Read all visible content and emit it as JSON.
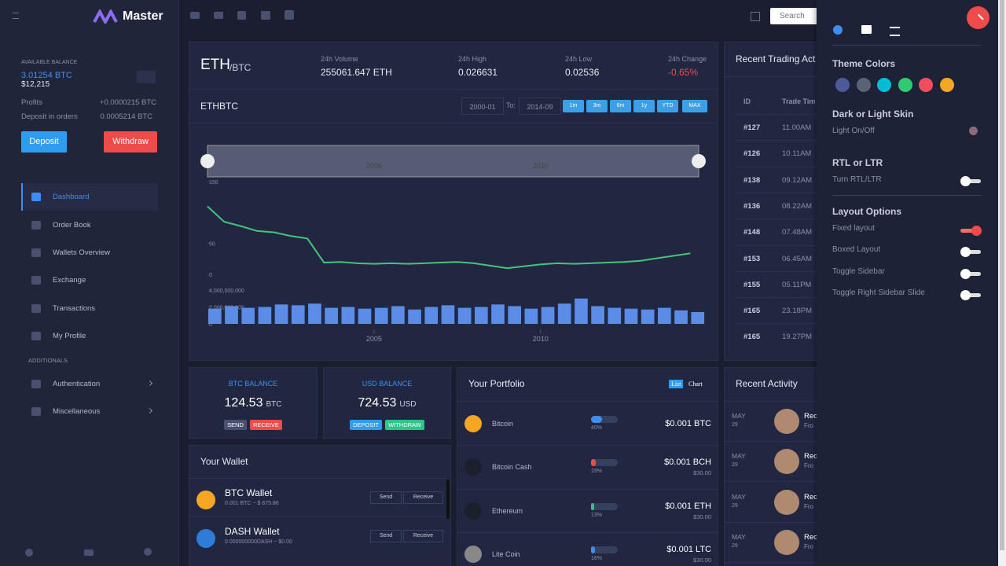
{
  "sidebar": {
    "brand": "Master",
    "balance_label": "AVAILABLE BALANCE",
    "balance_btc": "3.01254 BTC",
    "balance_usd": "$12,215",
    "profits_label": "Profits",
    "profits": "+0.0000215 BTC",
    "deposit_label": "Deposit in orders",
    "deposit": "0.0005214 BTC",
    "deposit_button": "Deposit",
    "withdraw_button": "Withdraw",
    "menu": [
      "Dashboard",
      "Order Book",
      "Wallets Overview",
      "Exchange",
      "Transactions",
      "My Profile"
    ],
    "additionals_label": "ADDITIONALS",
    "extra_menu": [
      "Authentication",
      "Miscellaneous"
    ]
  },
  "topbar": {
    "search": "Search"
  },
  "ticker": {
    "base": "ETH",
    "quote": "/BTC",
    "stats": [
      {
        "label": "24h Volume",
        "value": "255061.647 ETH"
      },
      {
        "label": "24h High",
        "value": "0.026631"
      },
      {
        "label": "24h Low",
        "value": "0.02536"
      },
      {
        "label": "24h Change",
        "value": "-0.65%"
      }
    ]
  },
  "chart_data": {
    "type": "line",
    "title": "ETHBTC",
    "from": "2000-01",
    "to_label": "To:",
    "to": "2014-09",
    "ranges": [
      "1m",
      "3m",
      "6m",
      "1y",
      "YTD",
      "MAX"
    ],
    "color": "#46c37b",
    "x": [
      2000,
      2000.5,
      2001,
      2001.5,
      2002,
      2002.5,
      2003,
      2003.5,
      2004,
      2004.5,
      2005,
      2005.5,
      2006,
      2006.5,
      2007,
      2007.5,
      2008,
      2008.5,
      2009,
      2009.5,
      2010,
      2010.5,
      2011,
      2011.5,
      2012,
      2012.5,
      2013,
      2013.5,
      2014,
      2014.5
    ],
    "xlim": [
      2000,
      2014.75
    ],
    "xticks": [
      2005,
      2010
    ],
    "series": [
      {
        "name": "ETHBTC",
        "values": [
          110,
          85,
          78,
          70,
          68,
          62,
          58,
          19,
          20,
          18,
          17,
          18,
          17,
          18,
          19,
          20,
          18,
          14,
          10,
          13,
          16,
          18,
          17,
          18,
          19,
          20,
          22,
          26,
          30,
          34
        ]
      },
      {
        "name": "Volume",
        "axis": "y2",
        "color": "#5b8de8",
        "values": [
          1800000000,
          2100000000,
          1900000000,
          2000000000,
          2300000000,
          2200000000,
          2400000000,
          1900000000,
          2000000000,
          1800000000,
          1900000000,
          2100000000,
          1700000000,
          2000000000,
          2200000000,
          1900000000,
          2000000000,
          2300000000,
          2100000000,
          1800000000,
          2000000000,
          2400000000,
          3000000000,
          2100000000,
          1900000000,
          1800000000,
          1700000000,
          1900000000,
          1600000000,
          1400000000
        ]
      }
    ],
    "ylim": [
      0,
      150
    ],
    "yticks": [
      0,
      50,
      150
    ],
    "y2lim": [
      0,
      4000000000
    ],
    "y2ticks": [
      0,
      {
        "value": 2000000000,
        "label": "2,000,000,000"
      },
      {
        "value": 4000000000,
        "label": "4,000,000,000"
      }
    ]
  },
  "trades": {
    "title": "Recent Trading Act",
    "columns": [
      "ID",
      "Trade Tim"
    ],
    "rows": [
      [
        "#127",
        "11.00AM"
      ],
      [
        "#126",
        "10.11AM"
      ],
      [
        "#138",
        "09.12AM"
      ],
      [
        "#136",
        "08.22AM"
      ],
      [
        "#148",
        "07.48AM"
      ],
      [
        "#153",
        "06.45AM"
      ],
      [
        "#155",
        "05.11PM"
      ],
      [
        "#165",
        "23.18PM"
      ],
      [
        "#165",
        "19.27PM"
      ]
    ]
  },
  "balances": [
    {
      "label": "BTC BALANCE",
      "amount": "124.53",
      "unit": "BTC",
      "buttons": [
        "SEND",
        "RECEIVE"
      ]
    },
    {
      "label": "USD BALANCE",
      "amount": "724.53",
      "unit": "USD",
      "buttons": [
        "DEPOSIT",
        "WITHDRAW"
      ]
    }
  ],
  "portfolio": {
    "title": "Your Portfolio",
    "tabs": [
      "List",
      "Chart"
    ],
    "rows": [
      {
        "name": "Bitcoin",
        "percent": 40,
        "percent_label": "40%",
        "amount": "$0.001 BTC",
        "color": "#3d8ef0"
      },
      {
        "name": "Bitcoin Cash",
        "percent": 19,
        "percent_label": "19%",
        "amount": "$0.001 BCH",
        "usd": "$30.00",
        "color": "#ef4b4b"
      },
      {
        "name": "Ethereum",
        "percent": 13,
        "percent_label": "13%",
        "amount": "$0.001 ETH",
        "usd": "$30.00",
        "color": "#2ec58a"
      },
      {
        "name": "Lite Coin",
        "percent": 16,
        "percent_label": "16%",
        "amount": "$0.001 LTC",
        "usd": "$30.00",
        "color": "#3d8ef0"
      }
    ]
  },
  "wallet": {
    "title": "Your Wallet",
    "items": [
      {
        "name": "BTC Wallet",
        "detail": "0.001 BTC ~ $ 875.86",
        "send": "Send",
        "receive": "Receive"
      },
      {
        "name": "DASH Wallet",
        "detail": "0.000000000DASH ~ $0.00",
        "send": "Send",
        "receive": "Receive"
      }
    ]
  },
  "activity": {
    "title": "Recent Activity",
    "items": [
      {
        "month": "MAY",
        "day": "29",
        "name": "Rec",
        "sub": "Fro"
      },
      {
        "month": "MAY",
        "day": "29",
        "name": "Rec",
        "sub": "Fro"
      },
      {
        "month": "MAY",
        "day": "29",
        "name": "Rec",
        "sub": "Fro"
      },
      {
        "month": "MAY",
        "day": "29",
        "name": "Rec",
        "sub": "Fro"
      }
    ]
  },
  "settings": {
    "theme_title": "Theme Colors",
    "colors": [
      "#4a5a9a",
      "#5a6275",
      "#00bcd4",
      "#2ecc71",
      "#f44b5e",
      "#f5a623"
    ],
    "skin_title": "Dark or Light Skin",
    "skin_label": "Light On/Off",
    "rtl_title": "RTL or LTR",
    "rtl_label": "Turn RTL/LTR",
    "rtl_on": false,
    "layout_title": "Layout Options",
    "options": [
      {
        "label": "Fixed layout",
        "on": true
      },
      {
        "label": "Boxed Layout",
        "on": false
      },
      {
        "label": "Toggle Sidebar",
        "on": false
      },
      {
        "label": "Toggle Right Sidebar Slide",
        "on": false
      }
    ]
  }
}
